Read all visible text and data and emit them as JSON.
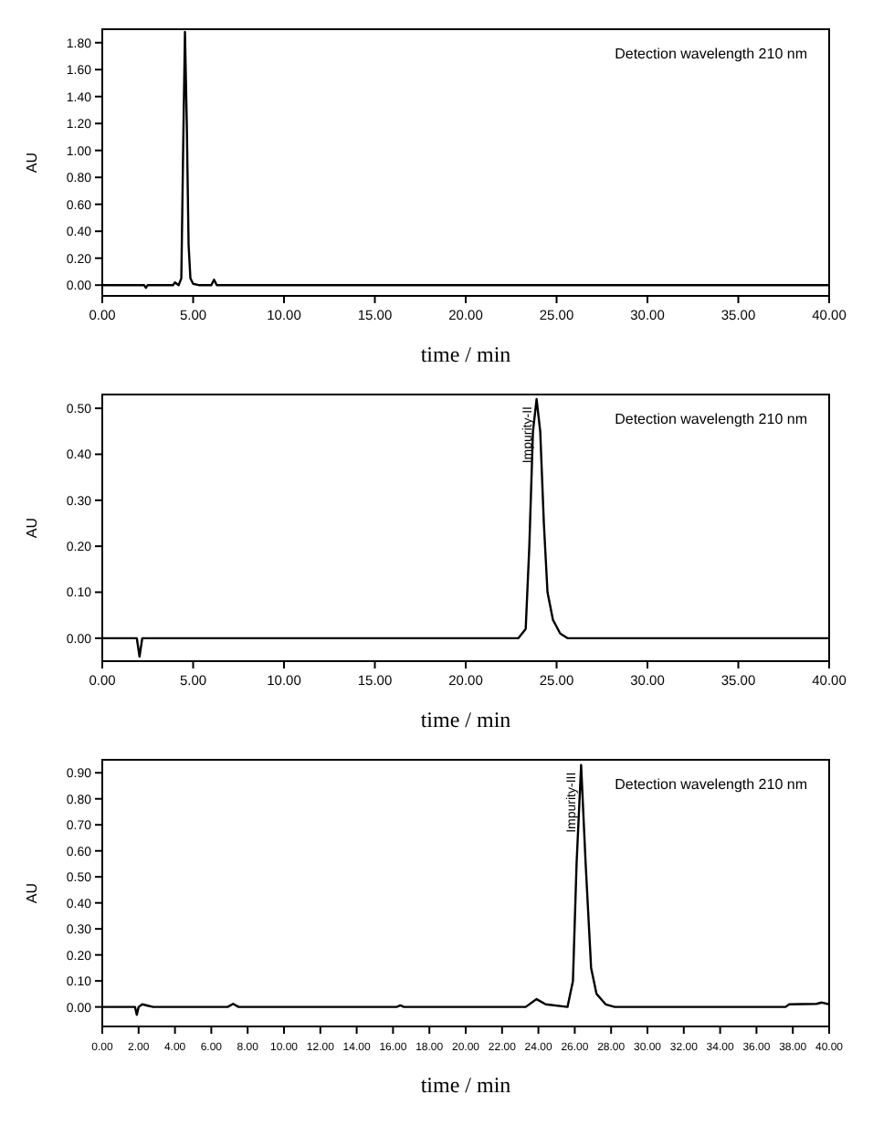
{
  "chart_data": [
    {
      "type": "line",
      "xlabel": "time / min",
      "ylabel": "AU",
      "annotations": [
        "Detection wavelength 210 nm"
      ],
      "xlim": [
        0,
        40
      ],
      "xticks": [
        {
          "value": 0,
          "label": "0.00"
        },
        {
          "value": 5,
          "label": "5.00"
        },
        {
          "value": 10,
          "label": "10.00"
        },
        {
          "value": 15,
          "label": "15.00"
        },
        {
          "value": 20,
          "label": "20.00"
        },
        {
          "value": 25,
          "label": "25.00"
        },
        {
          "value": 30,
          "label": "30.00"
        },
        {
          "value": 35,
          "label": "35.00"
        },
        {
          "value": 40,
          "label": "40.00"
        }
      ],
      "ylim": [
        -0.08,
        1.9
      ],
      "yticks": [
        {
          "value": 0,
          "label": "0.00"
        },
        {
          "value": 0.2,
          "label": "0.20"
        },
        {
          "value": 0.4,
          "label": "0.40"
        },
        {
          "value": 0.6,
          "label": "0.60"
        },
        {
          "value": 0.8,
          "label": "0.80"
        },
        {
          "value": 1,
          "label": "1.00"
        },
        {
          "value": 1.2,
          "label": "1.20"
        },
        {
          "value": 1.4,
          "label": "1.40"
        },
        {
          "value": 1.6,
          "label": "1.60"
        },
        {
          "value": 1.8,
          "label": "1.80"
        }
      ],
      "grid": false,
      "marker": "none",
      "line_style": "solid",
      "series": [
        {
          "color": "#000000",
          "x": [
            0,
            2.3,
            2.4,
            2.5,
            3.9,
            4.0,
            4.2,
            4.35,
            4.45,
            4.55,
            4.65,
            4.75,
            4.85,
            5.0,
            5.3,
            6.0,
            6.15,
            6.3,
            40
          ],
          "values": [
            0,
            0,
            -0.02,
            0,
            0,
            0.02,
            0,
            0.05,
            1.0,
            1.88,
            1.2,
            0.3,
            0.05,
            0.01,
            0,
            0,
            0.04,
            0,
            0
          ]
        }
      ]
    },
    {
      "type": "line",
      "xlabel": "time / min",
      "ylabel": "AU",
      "annotations": [
        "Detection wavelength 210 nm",
        {
          "text": "Impurity-II",
          "x": 23.9,
          "y": 0.52
        }
      ],
      "xlim": [
        0,
        40
      ],
      "xticks": [
        {
          "value": 0,
          "label": "0.00"
        },
        {
          "value": 5,
          "label": "5.00"
        },
        {
          "value": 10,
          "label": "10.00"
        },
        {
          "value": 15,
          "label": "15.00"
        },
        {
          "value": 20,
          "label": "20.00"
        },
        {
          "value": 25,
          "label": "25.00"
        },
        {
          "value": 30,
          "label": "30.00"
        },
        {
          "value": 35,
          "label": "35.00"
        },
        {
          "value": 40,
          "label": "40.00"
        }
      ],
      "ylim": [
        -0.05,
        0.53
      ],
      "yticks": [
        {
          "value": 0,
          "label": "0.00"
        },
        {
          "value": 0.1,
          "label": "0.10"
        },
        {
          "value": 0.2,
          "label": "0.20"
        },
        {
          "value": 0.3,
          "label": "0.30"
        },
        {
          "value": 0.4,
          "label": "0.40"
        },
        {
          "value": 0.5,
          "label": "0.50"
        }
      ],
      "grid": false,
      "marker": "none",
      "line_style": "solid",
      "series": [
        {
          "color": "#000000",
          "x": [
            0,
            1.9,
            2.05,
            2.2,
            22.9,
            23.3,
            23.5,
            23.7,
            23.9,
            24.1,
            24.3,
            24.5,
            24.8,
            25.2,
            25.6,
            40
          ],
          "values": [
            0,
            0,
            -0.04,
            0,
            0,
            0.02,
            0.2,
            0.45,
            0.52,
            0.45,
            0.25,
            0.1,
            0.04,
            0.01,
            0,
            0
          ]
        }
      ]
    },
    {
      "type": "line",
      "xlabel": "time / min",
      "ylabel": "AU",
      "annotations": [
        "Detection wavelength 210 nm",
        {
          "text": "Impurity-III",
          "x": 26.35,
          "y": 0.93
        }
      ],
      "xlim": [
        0,
        40
      ],
      "xticks": [
        {
          "value": 0,
          "label": "0.00"
        },
        {
          "value": 2,
          "label": "2.00"
        },
        {
          "value": 4,
          "label": "4.00"
        },
        {
          "value": 6,
          "label": "6.00"
        },
        {
          "value": 8,
          "label": "8.00"
        },
        {
          "value": 10,
          "label": "10.00"
        },
        {
          "value": 12,
          "label": "12.00"
        },
        {
          "value": 14,
          "label": "14.00"
        },
        {
          "value": 16,
          "label": "16.00"
        },
        {
          "value": 18,
          "label": "18.00"
        },
        {
          "value": 20,
          "label": "20.00"
        },
        {
          "value": 22,
          "label": "22.00"
        },
        {
          "value": 24,
          "label": "24.00"
        },
        {
          "value": 26,
          "label": "26.00"
        },
        {
          "value": 28,
          "label": "28.00"
        },
        {
          "value": 30,
          "label": "30.00"
        },
        {
          "value": 32,
          "label": "32.00"
        },
        {
          "value": 34,
          "label": "34.00"
        },
        {
          "value": 36,
          "label": "36.00"
        },
        {
          "value": 38,
          "label": "38.00"
        },
        {
          "value": 40,
          "label": "40.00"
        }
      ],
      "ylim": [
        -0.075,
        0.95
      ],
      "yticks": [
        {
          "value": 0,
          "label": "0.00"
        },
        {
          "value": 0.1,
          "label": "0.10"
        },
        {
          "value": 0.2,
          "label": "0.20"
        },
        {
          "value": 0.3,
          "label": "0.30"
        },
        {
          "value": 0.4,
          "label": "0.40"
        },
        {
          "value": 0.5,
          "label": "0.50"
        },
        {
          "value": 0.6,
          "label": "0.60"
        },
        {
          "value": 0.7,
          "label": "0.70"
        },
        {
          "value": 0.8,
          "label": "0.80"
        },
        {
          "value": 0.9,
          "label": "0.90"
        }
      ],
      "grid": false,
      "marker": "none",
      "line_style": "solid",
      "series": [
        {
          "color": "#000000",
          "x": [
            0,
            1.8,
            1.9,
            2.0,
            2.2,
            2.5,
            2.8,
            6.9,
            7.2,
            7.5,
            16.2,
            16.4,
            16.6,
            23.3,
            23.9,
            24.4,
            25.6,
            25.9,
            26.1,
            26.35,
            26.6,
            26.9,
            27.2,
            27.7,
            28.2,
            37.6,
            37.8,
            39.3,
            39.6,
            40
          ],
          "values": [
            0,
            0,
            -0.03,
            0,
            0.01,
            0.005,
            0,
            0,
            0.012,
            0,
            0,
            0.006,
            0,
            0,
            0.03,
            0.01,
            0,
            0.1,
            0.55,
            0.93,
            0.55,
            0.15,
            0.05,
            0.01,
            0,
            0,
            0.01,
            0.012,
            0.017,
            0.01
          ]
        }
      ]
    }
  ]
}
